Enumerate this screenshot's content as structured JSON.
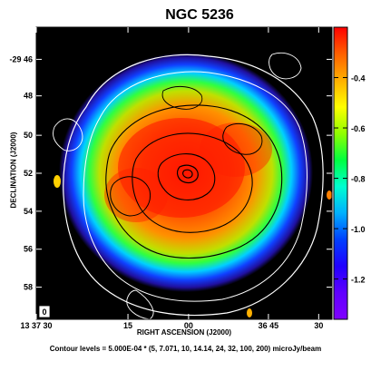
{
  "chart_data": {
    "type": "heatmap",
    "title": "NGC 5236",
    "xlabel": "RIGHT ASCENSION (J2000)",
    "ylabel": "DECLINATION (J2000)",
    "note": "Contour levels = 5.000E-04 * (5, 7.071, 10, 14.14, 24, 32, 100, 200) microJy/beam",
    "x_ticks": [
      "13 37 30",
      "15",
      "00",
      "36 45",
      "30"
    ],
    "y_ticks": [
      "-29 46",
      "48",
      "50",
      "52",
      "54",
      "56",
      "58"
    ],
    "colorbar": {
      "ticks": [
        "-0.4",
        "-0.6",
        "-0.8",
        "-1.0",
        "-1.2"
      ],
      "values": [
        -0.4,
        -0.6,
        -0.8,
        -1.0,
        -1.2
      ],
      "range": [
        -0.2,
        -1.36
      ],
      "colors": [
        "#ff0000",
        "#ff6000",
        "#ffb000",
        "#ffff00",
        "#90ff00",
        "#00ff40",
        "#00ffd0",
        "#00b0ff",
        "#0040ff",
        "#2000ff",
        "#6000ff",
        "#8000ff"
      ]
    },
    "beam_label": "0",
    "contour_levels": [
      5,
      7.071,
      10,
      14.14,
      24,
      32,
      100,
      200
    ],
    "contour_scale": "5.000E-04"
  }
}
